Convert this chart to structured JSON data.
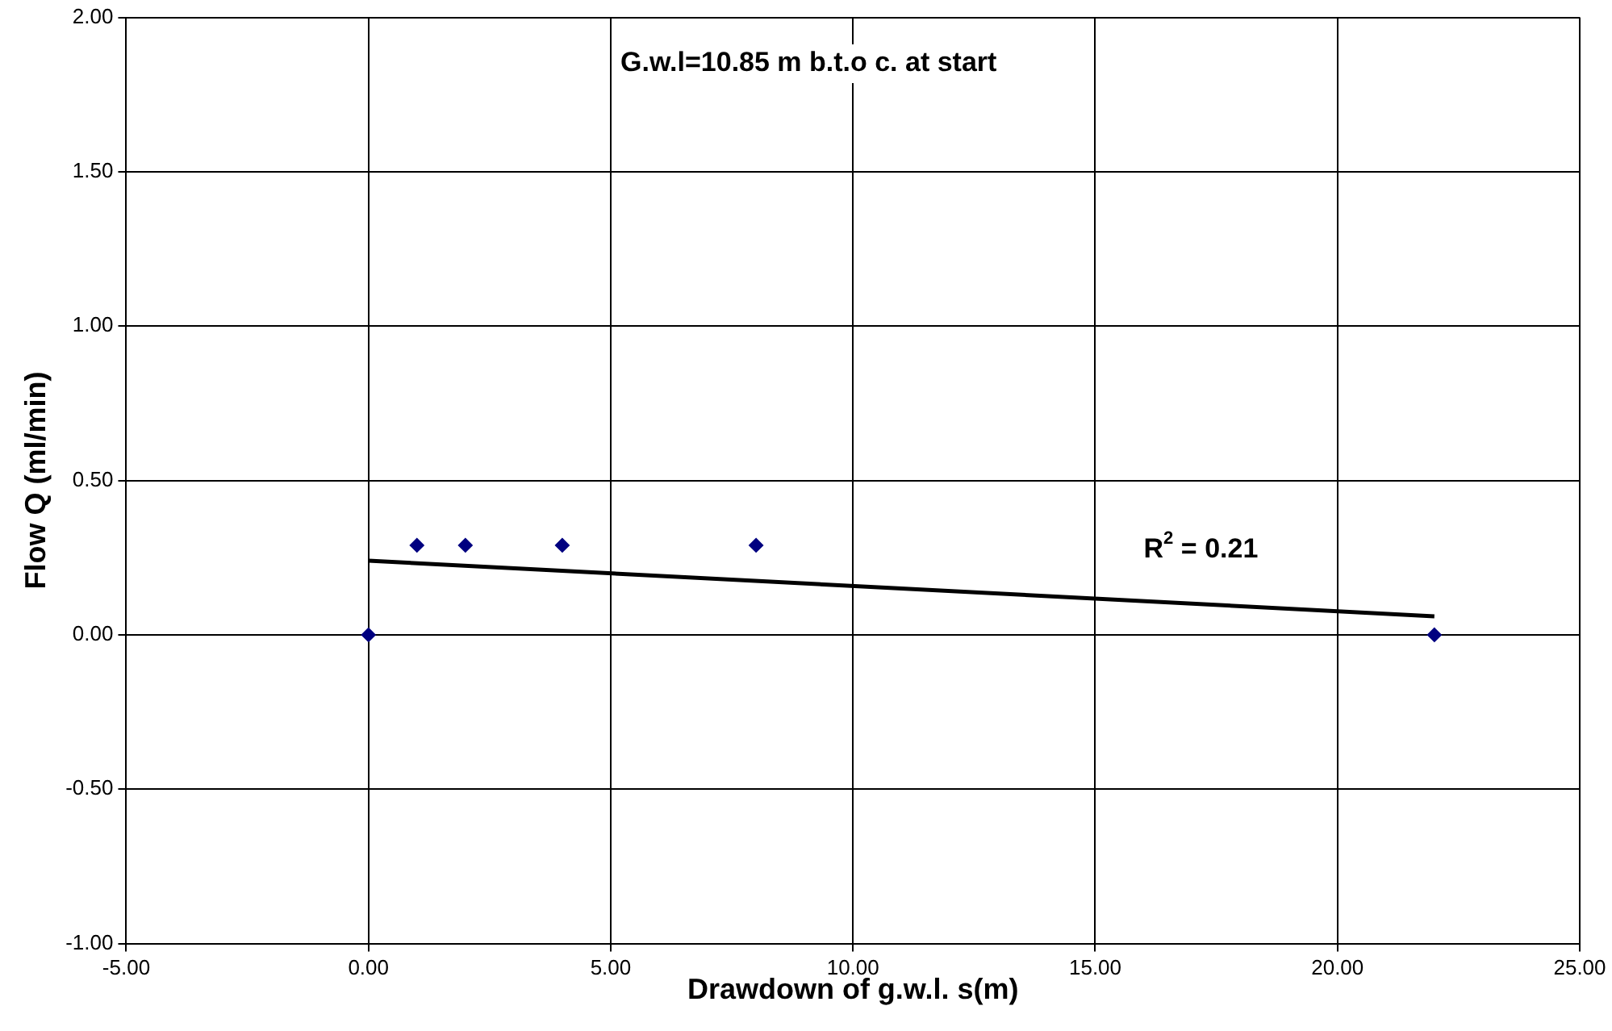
{
  "chart_data": {
    "type": "scatter",
    "xlabel": "Drawdown of g.w.l. s(m)",
    "ylabel": "Flow Q (ml/min)",
    "annotations": [
      "G.w.l=10.85 m b.t.o c. at start",
      "R$^{2}$ = 0.21"
    ],
    "series": [
      {
        "color": "#000080",
        "x": [
          0,
          1,
          2,
          4,
          8,
          22
        ],
        "values": [
          0,
          0.29,
          0.29,
          0.29,
          0.29,
          0
        ],
        "marker": "diamond"
      },
      {
        "type": "line",
        "color": "#000000",
        "x": [
          0,
          22
        ],
        "values": [
          0.24,
          0.06
        ],
        "marker": "none",
        "line_style": "solid"
      }
    ],
    "xlim": [
      -5,
      25
    ],
    "xticks": [
      {
        "value": -5,
        "label": "-5.00"
      },
      {
        "value": 0,
        "label": "0.00"
      },
      {
        "value": 5,
        "label": "5.00"
      },
      {
        "value": 10,
        "label": "10.00"
      },
      {
        "value": 15,
        "label": "15.00"
      },
      {
        "value": 20,
        "label": "20.00"
      },
      {
        "value": 25,
        "label": "25.00"
      }
    ],
    "ylim": [
      -1,
      2
    ],
    "yticks": [
      {
        "value": -1,
        "label": "-1.00"
      },
      {
        "value": -0.5,
        "label": "-0.50"
      },
      {
        "value": 0,
        "label": "0.00"
      },
      {
        "value": 0.5,
        "label": "0.50"
      },
      {
        "value": 1,
        "label": "1.00"
      },
      {
        "value": 1.5,
        "label": "1.50"
      },
      {
        "value": 2,
        "label": "2.00"
      }
    ],
    "grid": true,
    "legend": false
  }
}
